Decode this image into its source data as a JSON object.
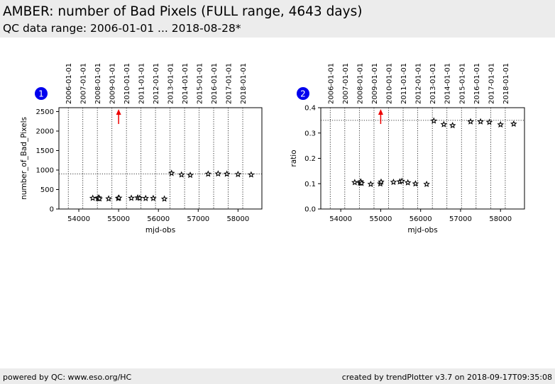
{
  "header": {
    "title": "AMBER: number of Bad Pixels (FULL range, 4643 days)",
    "subtitle": "QC data range: 2006-01-01 ... 2018-08-28*"
  },
  "footer": {
    "left": "powered by QC: www.eso.org/HC",
    "right": "created by trendPlotter v3.7 on 2018-09-17T09:35:08"
  },
  "colors": {
    "badge": "#0000ee",
    "marker": "#000000",
    "arrow": "#ee0000",
    "background": "#ececec"
  },
  "date_labels": [
    "2006-01-01",
    "2007-01-01",
    "2008-01-01",
    "2009-01-01",
    "2010-01-01",
    "2011-01-01",
    "2012-01-01",
    "2013-01-01",
    "2014-01-01",
    "2015-01-01",
    "2016-01-01",
    "2017-01-01",
    "2018-01-01"
  ],
  "date_mjd": [
    53736,
    54101,
    54466,
    54832,
    55197,
    55562,
    55927,
    56293,
    56658,
    57023,
    57388,
    57754,
    58119
  ],
  "chart_data": [
    {
      "type": "scatter",
      "badge": "1",
      "xlabel": "mjd-obs",
      "ylabel": "number_of_Bad_Pixels",
      "xlim": [
        53500,
        58600
      ],
      "ylim": [
        0,
        2600
      ],
      "xticks": [
        54000,
        55000,
        56000,
        57000,
        58000
      ],
      "xtick_labels": [
        "54000",
        "55000",
        "56000",
        "57000",
        "58000"
      ],
      "yticks": [
        0,
        500,
        1000,
        1500,
        2000,
        2500
      ],
      "ytick_labels": [
        "0",
        "500",
        "1000",
        "1500",
        "2000",
        "2500"
      ],
      "reference_line": 900,
      "arrow_x": 55000,
      "marker": "star",
      "x": [
        54350,
        54480,
        54500,
        54520,
        54750,
        54990,
        55010,
        55320,
        55480,
        55530,
        55680,
        55870,
        56150,
        56330,
        56580,
        56800,
        57250,
        57500,
        57720,
        58000,
        58330
      ],
      "y": [
        280,
        270,
        290,
        265,
        265,
        275,
        285,
        280,
        290,
        280,
        275,
        275,
        260,
        920,
        880,
        870,
        900,
        905,
        900,
        890,
        880
      ]
    },
    {
      "type": "scatter",
      "badge": "2",
      "xlabel": "mjd-obs",
      "ylabel": "ratio",
      "xlim": [
        53500,
        58600
      ],
      "ylim": [
        0,
        0.4
      ],
      "xticks": [
        54000,
        55000,
        56000,
        57000,
        58000
      ],
      "xtick_labels": [
        "54000",
        "55000",
        "56000",
        "57000",
        "58000"
      ],
      "yticks": [
        0,
        0.1,
        0.2,
        0.3,
        0.4
      ],
      "ytick_labels": [
        "0.0",
        "0.1",
        "0.2",
        "0.3",
        "0.4"
      ],
      "reference_line": 0.35,
      "arrow_x": 55000,
      "marker": "star",
      "x": [
        54350,
        54480,
        54500,
        54520,
        54750,
        54990,
        55010,
        55320,
        55480,
        55530,
        55680,
        55870,
        56150,
        56330,
        56580,
        56800,
        57250,
        57500,
        57720,
        58000,
        58330
      ],
      "y": [
        0.105,
        0.103,
        0.108,
        0.102,
        0.098,
        0.1,
        0.107,
        0.106,
        0.108,
        0.11,
        0.104,
        0.1,
        0.098,
        0.348,
        0.334,
        0.33,
        0.345,
        0.345,
        0.343,
        0.333,
        0.336
      ]
    }
  ]
}
